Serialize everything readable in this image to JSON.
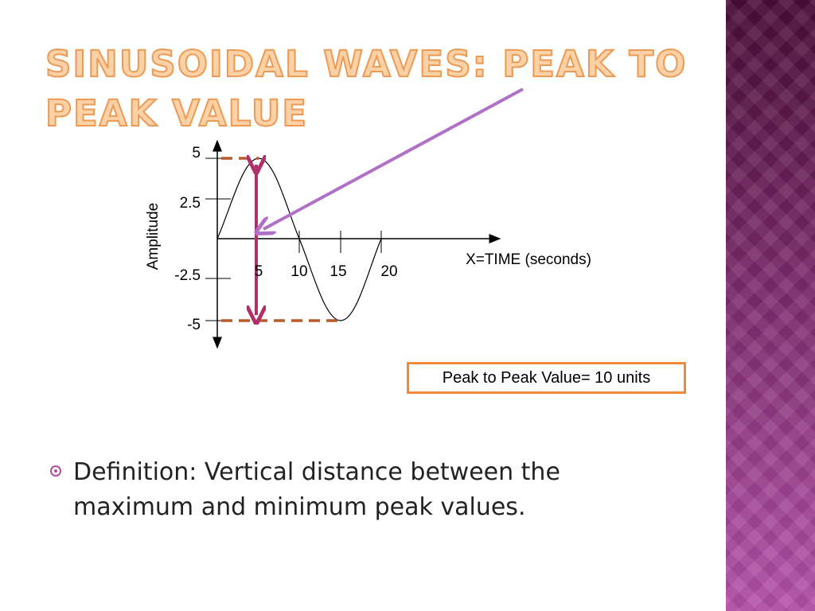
{
  "slide": {
    "title": "SINUSOIDAL WAVES: PEAK TO PEAK VALUE",
    "diagram": {
      "y_axis_label": "Amplitude",
      "x_axis_label": "X=TIME (seconds)",
      "y_ticks": [
        5,
        2.5,
        -2.5,
        -5
      ],
      "x_ticks": [
        5,
        10,
        15,
        20
      ],
      "callout": "Peak to Peak Value= 10 units"
    },
    "bullets": [
      "Definition: Vertical distance between the maximum and minimum peak values."
    ]
  }
}
